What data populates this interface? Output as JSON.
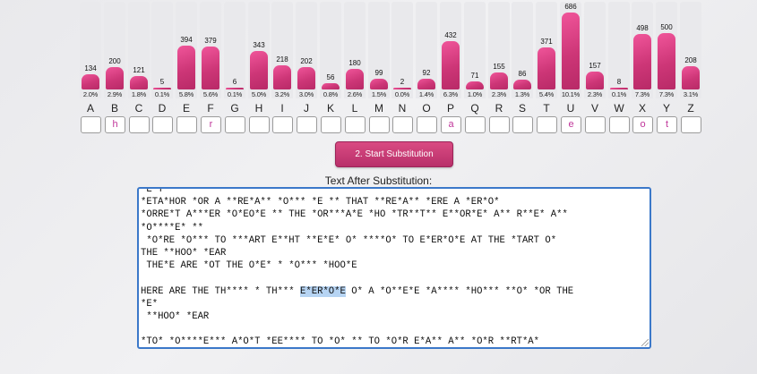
{
  "chart_data": {
    "type": "bar",
    "categories": [
      "A",
      "B",
      "C",
      "D",
      "E",
      "F",
      "G",
      "H",
      "I",
      "J",
      "K",
      "L",
      "M",
      "N",
      "O",
      "P",
      "Q",
      "R",
      "S",
      "T",
      "U",
      "V",
      "W",
      "X",
      "Y",
      "Z"
    ],
    "values": [
      134,
      200,
      121,
      5,
      394,
      379,
      6,
      343,
      218,
      202,
      56,
      180,
      99,
      2,
      92,
      432,
      71,
      155,
      86,
      371,
      686,
      157,
      8,
      498,
      500,
      208
    ],
    "percents": [
      "2.0%",
      "2.9%",
      "1.8%",
      "0.1%",
      "5.8%",
      "5.6%",
      "0.1%",
      "5.0%",
      "3.2%",
      "3.0%",
      "0.8%",
      "2.6%",
      "1.5%",
      "0.0%",
      "1.4%",
      "6.3%",
      "1.0%",
      "2.3%",
      "1.3%",
      "5.4%",
      "10.1%",
      "2.3%",
      "0.1%",
      "7.3%",
      "7.3%",
      "3.1%"
    ],
    "ylim": [
      0,
      686
    ],
    "colors": {
      "bar": "#d63d80",
      "bar_track": "#e9e9ec"
    }
  },
  "substitutions": [
    "",
    "h",
    "",
    "",
    "",
    "r",
    "",
    "",
    "",
    "",
    "",
    "",
    "",
    "",
    "",
    "a",
    "",
    "",
    "",
    "",
    "e",
    "",
    "",
    "o",
    "t",
    ""
  ],
  "start_button_label": "2. Start Substitution",
  "section_title": "Text After Substitution:",
  "text_lines": [
    {
      "pre": "*E*T",
      "hl": "",
      "post": ""
    },
    {
      "pre": "*ETA*HOR *OR A **RE*A** *O*** *E ** THAT **RE*A** *ERE A *ER*O*",
      "hl": "",
      "post": ""
    },
    {
      "pre": "*ORRE*T A***ER *O*EO*E ** THE *OR***A*E *HO *TR**T** E**OR*E* A** R**E* A**",
      "hl": "",
      "post": ""
    },
    {
      "pre": "*O****E* **",
      "hl": "",
      "post": ""
    },
    {
      "pre": " *O*RE *O*** TO ***ART E**HT **E*E* O* ****O* TO E*ER*O*E AT THE *TART O*",
      "hl": "",
      "post": ""
    },
    {
      "pre": "THE **HOO* *EAR",
      "hl": "",
      "post": ""
    },
    {
      "pre": " THE*E ARE *OT THE O*E* * *O*** *HOO*E",
      "hl": "",
      "post": ""
    },
    {
      "pre": "",
      "hl": "",
      "post": ""
    },
    {
      "pre": "HERE ARE THE TH**** * TH*** ",
      "hl": "E*ER*O*E",
      "post": " O* A *O**E*E *A**** *HO*** **O* *OR THE"
    },
    {
      "pre": "*E*",
      "hl": "",
      "post": ""
    },
    {
      "pre": " **HOO* *EAR",
      "hl": "",
      "post": ""
    },
    {
      "pre": "",
      "hl": "",
      "post": ""
    },
    {
      "pre": "*TO* *O****E*** A*O*T *EE**** TO *O* ** TO *O*R E*A** A** *O*R **RT*A*",
      "hl": "",
      "post": ""
    }
  ]
}
